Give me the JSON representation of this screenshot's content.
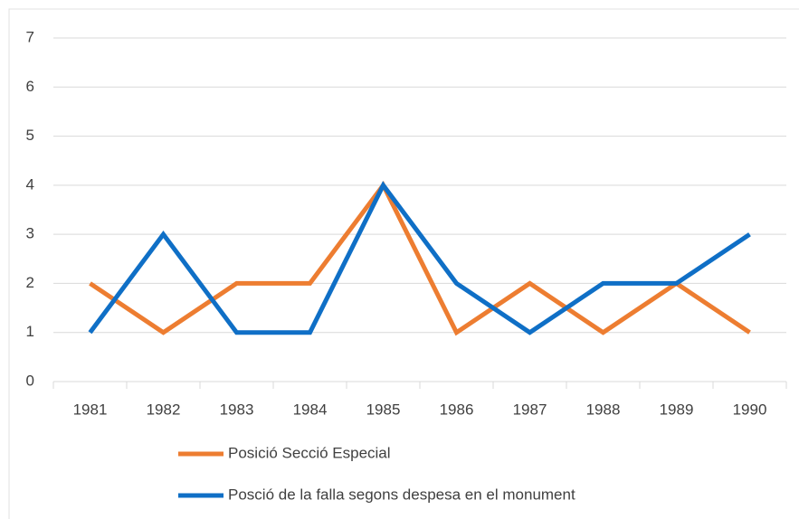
{
  "chart_data": {
    "type": "line",
    "categories": [
      "1981",
      "1982",
      "1983",
      "1984",
      "1985",
      "1986",
      "1987",
      "1988",
      "1989",
      "1990"
    ],
    "series": [
      {
        "name": "Posició Secció Especial",
        "color": "#ed7d31",
        "values": [
          2,
          1,
          2,
          2,
          4,
          1,
          2,
          1,
          2,
          1
        ]
      },
      {
        "name": "Posció de la falla segons despesa en el monument",
        "color": "#0f6fc6",
        "values": [
          1,
          3,
          1,
          1,
          4,
          2,
          1,
          2,
          2,
          3
        ]
      }
    ],
    "ylim": [
      0,
      7
    ],
    "yticks": [
      0,
      1,
      2,
      3,
      4,
      5,
      6,
      7
    ],
    "grid": true
  }
}
